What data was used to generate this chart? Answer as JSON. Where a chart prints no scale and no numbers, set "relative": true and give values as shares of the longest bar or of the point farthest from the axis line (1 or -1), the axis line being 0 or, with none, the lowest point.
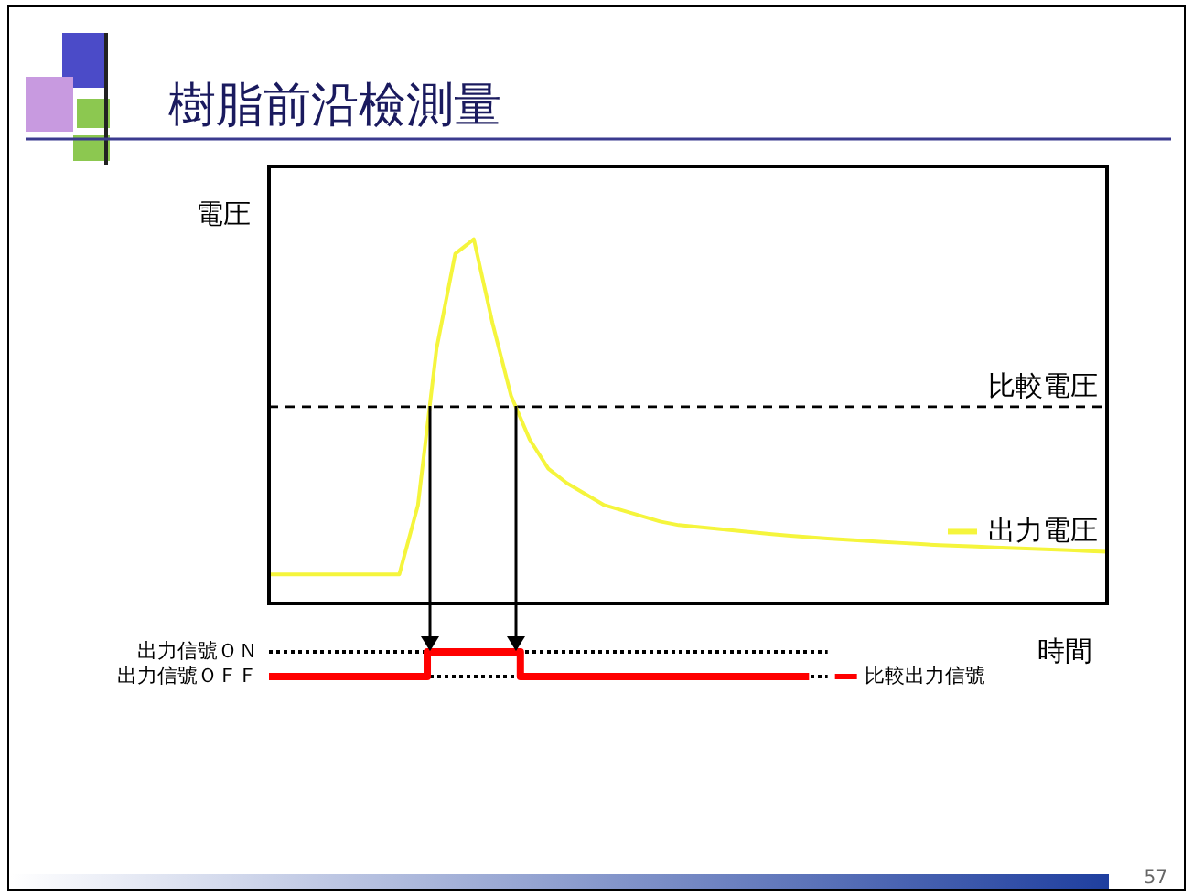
{
  "chart_data": [
    {
      "type": "line",
      "title": "樹脂前沿檢測量",
      "ylabel": "電圧",
      "xlabel": "時間",
      "relative": true,
      "marker": "none",
      "categories": [
        null,
        null,
        null,
        null,
        null,
        null,
        null,
        null,
        null,
        null,
        null,
        null,
        null,
        null,
        null,
        null,
        null,
        null,
        null,
        null,
        null,
        null,
        null,
        null,
        null,
        null,
        null,
        null,
        null,
        null,
        null,
        null,
        null,
        null,
        null,
        null,
        null,
        null,
        null,
        null,
        null,
        null,
        null,
        null,
        null,
        null
      ],
      "series": [
        {
          "name": "出力電圧",
          "color": "#f5f53c",
          "values": [
            0.08,
            0.08,
            0.08,
            0.08,
            0.08,
            0.08,
            0.08,
            0.08,
            0.27,
            0.7,
            0.96,
            1.0,
            0.77,
            0.57,
            0.45,
            0.37,
            0.33,
            0.3,
            0.27,
            0.255,
            0.24,
            0.225,
            0.215,
            0.21,
            0.205,
            0.2,
            0.195,
            0.19,
            0.186,
            0.182,
            0.178,
            0.175,
            0.172,
            0.169,
            0.166,
            0.163,
            0.16,
            0.158,
            0.156,
            0.154,
            0.152,
            0.15,
            0.148,
            0.146,
            0.144,
            0.142
          ]
        }
      ],
      "ref_lines": [
        {
          "axis": "y",
          "value": 0.54,
          "label": "比較電圧",
          "color": "#000000",
          "line_style": "dashed"
        }
      ],
      "annotations": [
        "57"
      ]
    },
    {
      "type": "step",
      "relative": true,
      "marker": "none",
      "categories": [
        null,
        null,
        null,
        null,
        null,
        null,
        null,
        null,
        null,
        null,
        null,
        null,
        null,
        null,
        null,
        null,
        null,
        null,
        null,
        null,
        null,
        null,
        null,
        null,
        null,
        null,
        null,
        null,
        null,
        null,
        null,
        null,
        null,
        null,
        null,
        null,
        null,
        null,
        null,
        null,
        null,
        null,
        null,
        null,
        null,
        null
      ],
      "series": [
        {
          "name": "比較出力信號",
          "color": "#ff0000",
          "values": [
            0,
            0,
            0,
            0,
            0,
            0,
            0,
            0,
            0,
            1,
            1,
            1,
            1,
            1,
            0,
            0,
            0,
            0,
            0,
            0,
            0,
            0,
            0,
            0,
            0,
            0,
            0,
            0,
            0,
            0,
            null,
            null,
            null,
            null,
            null,
            null,
            null,
            null,
            null,
            null,
            null,
            null,
            null,
            null,
            null,
            null
          ]
        }
      ],
      "ref_lines": [
        {
          "axis": "y",
          "value": 1,
          "label": "出力信號ＯＮ",
          "color": "#000000",
          "line_style": "dotted"
        },
        {
          "axis": "y",
          "value": 0,
          "label": "出力信號ＯＦＦ",
          "color": "#000000",
          "line_style": "dotted"
        }
      ]
    }
  ]
}
